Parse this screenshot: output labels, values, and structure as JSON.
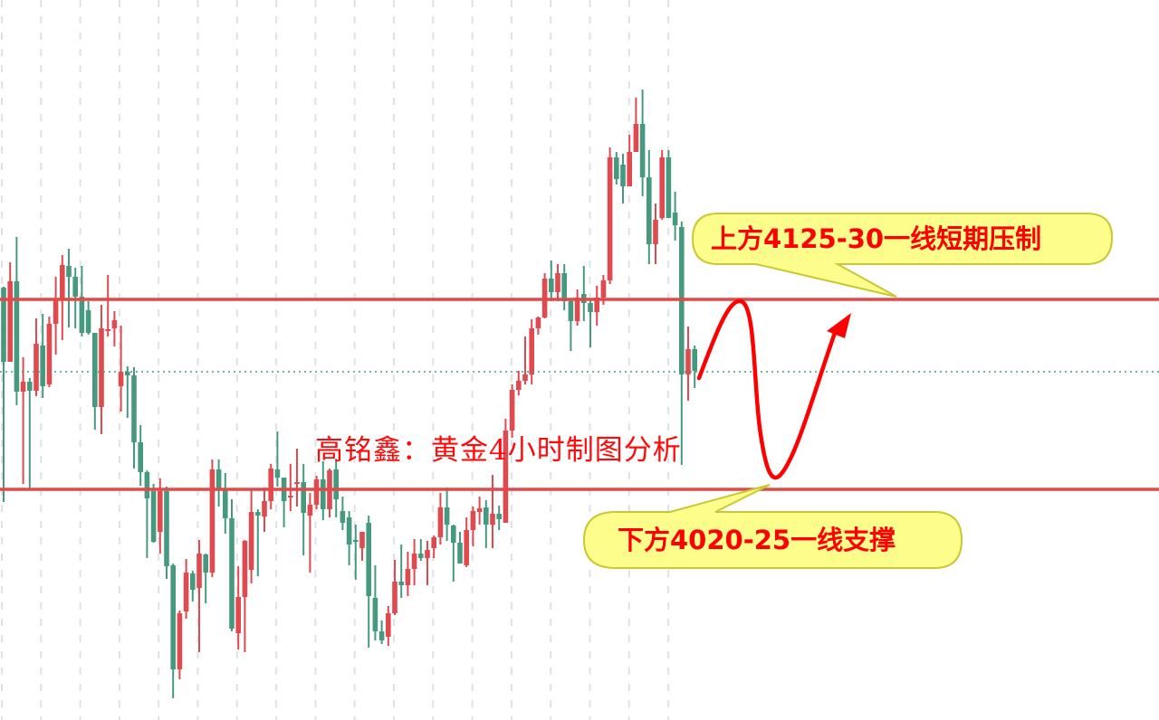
{
  "chart_data": {
    "type": "candlestick",
    "title": "高铭鑫：黄金4小时制图分析",
    "ylim": [
      3895,
      4293
    ],
    "grid": {
      "vertical": "dashed",
      "horizontal": false
    },
    "colors": {
      "up": "#e04a4f",
      "down": "#46997f",
      "level_line": "#e34848",
      "current_price_line": "#46997f",
      "callout_fill": "#fdfd8c",
      "callout_border": "#c8c832",
      "text": "#ff0000",
      "arrow": "#ff0000"
    },
    "candles_format": [
      "open",
      "high",
      "low",
      "close"
    ],
    "candles": [
      [
        4134,
        4134.5,
        4015.5,
        4093
      ],
      [
        4093,
        4148,
        4093,
        4137.5
      ],
      [
        4137.5,
        4162,
        4069,
        4076.5
      ],
      [
        4076.5,
        4095.5,
        4025.5,
        4082
      ],
      [
        4082,
        4084,
        4022.5,
        4077
      ],
      [
        4077,
        4117,
        4074,
        4103
      ],
      [
        4102,
        4119.5,
        4073,
        4079.5
      ],
      [
        4080.5,
        4118,
        4079,
        4114
      ],
      [
        4114,
        4140,
        4097,
        4127.5
      ],
      [
        4127.5,
        4152,
        4105,
        4146.5
      ],
      [
        4146,
        4155.5,
        4112,
        4140
      ],
      [
        4140,
        4145,
        4111.5,
        4129
      ],
      [
        4129,
        4146,
        4107,
        4109
      ],
      [
        4121.5,
        4126.5,
        4108,
        4109
      ],
      [
        4109,
        4109,
        4055.5,
        4068
      ],
      [
        4068,
        4124.5,
        4053,
        4111.5
      ],
      [
        4110.5,
        4141,
        4107,
        4111
      ],
      [
        4111.5,
        4121,
        4101.5,
        4116
      ],
      [
        4079.5,
        4113,
        4065.5,
        4087.5
      ],
      [
        4087.5,
        4090.5,
        4062,
        4085.5
      ],
      [
        4085.5,
        4090,
        4034,
        4048.5
      ],
      [
        4048.5,
        4058,
        4024.5,
        4032
      ],
      [
        4032,
        4033,
        3984.5,
        4017.5
      ],
      [
        4021.5,
        4025.5,
        3993,
        3993.5
      ],
      [
        3999,
        4028.5,
        3987,
        4021.5
      ],
      [
        4021.5,
        4024,
        3973,
        3980
      ],
      [
        3980.5,
        3981.5,
        3907,
        3923
      ],
      [
        3923,
        3955.5,
        3917.5,
        3954
      ],
      [
        3955,
        3984,
        3951,
        3976.5
      ],
      [
        3976,
        3977.5,
        3960.5,
        3967
      ],
      [
        3968,
        3994.5,
        3932.5,
        3987
      ],
      [
        3986.5,
        3987,
        3959.5,
        3976.5
      ],
      [
        3976.5,
        4039,
        3974,
        4033.5
      ],
      [
        4033.5,
        4039,
        4013,
        4023
      ],
      [
        4023,
        4031.5,
        3998,
        4006.5
      ],
      [
        4006.5,
        4017,
        3944,
        3945.5
      ],
      [
        3943,
        3980,
        3934,
        3963
      ],
      [
        3963,
        3994.5,
        3932.5,
        3994
      ],
      [
        3978,
        4022.5,
        3970.5,
        4010
      ],
      [
        4010,
        4011.5,
        3974.5,
        4008
      ],
      [
        4007.5,
        4023.5,
        3999,
        4016
      ],
      [
        4016,
        4036.5,
        4011.5,
        4034
      ],
      [
        4033.5,
        4054.5,
        4024,
        4029
      ],
      [
        4029,
        4029,
        4001.5,
        4016
      ],
      [
        4019,
        4036.5,
        4010.5,
        4019
      ],
      [
        4026.5,
        4045,
        4013,
        4026.5
      ],
      [
        4026.5,
        4036.5,
        3986,
        4009.5
      ],
      [
        4008,
        4020.5,
        3976.5,
        4014
      ],
      [
        4014,
        4030,
        4011.5,
        4028
      ],
      [
        4028,
        4038,
        4005.5,
        4011.5
      ],
      [
        4011.5,
        4034,
        4007,
        4033
      ],
      [
        4033.5,
        4039.5,
        4007,
        4017
      ],
      [
        4010.5,
        4018.5,
        4000,
        4004
      ],
      [
        4007,
        4010.5,
        3980.5,
        3992
      ],
      [
        3994.5,
        4003,
        3972.5,
        3993.5
      ],
      [
        3990,
        3995.5,
        3983,
        3999
      ],
      [
        4004,
        4008,
        3935,
        3963.5
      ],
      [
        3962.5,
        3980.5,
        3939,
        3944
      ],
      [
        3944,
        3950,
        3937,
        3939
      ],
      [
        3941,
        3958,
        3936,
        3954
      ],
      [
        3954,
        3983.5,
        3953,
        3971.5
      ],
      [
        3971.5,
        3992,
        3962.5,
        3969.5
      ],
      [
        3969.5,
        3988,
        3963.5,
        3978.5
      ],
      [
        3978.5,
        3995,
        3969.5,
        3987
      ],
      [
        3987,
        3995,
        3983,
        3984.5
      ],
      [
        3984.5,
        3994,
        3969.5,
        3989
      ],
      [
        3990,
        3997,
        3984.5,
        3996
      ],
      [
        3996,
        4020.5,
        3992,
        4012.5
      ],
      [
        4012.5,
        4023.5,
        3994,
        4003
      ],
      [
        4002.5,
        4003,
        3971.5,
        3993
      ],
      [
        3993,
        3999,
        3981.5,
        3981.5
      ],
      [
        3980.5,
        4007,
        3979.5,
        4000
      ],
      [
        4000,
        4013,
        3991,
        4010.5
      ],
      [
        4010,
        4018.5,
        4003,
        4012
      ],
      [
        4012.5,
        4016.5,
        3990,
        4003
      ],
      [
        4003,
        4030.5,
        3990,
        4009
      ],
      [
        4009,
        4013.5,
        4000,
        4006
      ],
      [
        4004,
        4061.5,
        4004,
        4055
      ],
      [
        4055,
        4080.5,
        4051,
        4077.5
      ],
      [
        4077.5,
        4088,
        4074.5,
        4082.5
      ],
      [
        4082.5,
        4107,
        4080.5,
        4086
      ],
      [
        4086,
        4116.5,
        4080.5,
        4111.5
      ],
      [
        4111.5,
        4118,
        4108,
        4117.5
      ],
      [
        4117.5,
        4142,
        4117,
        4139
      ],
      [
        4139,
        4149,
        4126.5,
        4131.5
      ],
      [
        4131.5,
        4147,
        4126.5,
        4142
      ],
      [
        4142,
        4147,
        4121.5,
        4126.5
      ],
      [
        4126.5,
        4127.5,
        4099,
        4115.5
      ],
      [
        4115.5,
        4133,
        4113,
        4128.5
      ],
      [
        4130.5,
        4146,
        4115.5,
        4125.5
      ],
      [
        4125.5,
        4127.5,
        4101,
        4120.5
      ],
      [
        4120.5,
        4135,
        4113,
        4128.5
      ],
      [
        4128.5,
        4141,
        4124.5,
        4138
      ],
      [
        4138,
        4211.5,
        4136,
        4206
      ],
      [
        4206,
        4209,
        4191,
        4194
      ],
      [
        4202,
        4208,
        4180.5,
        4190
      ],
      [
        4190,
        4218.5,
        4190,
        4209
      ],
      [
        4209,
        4239,
        4209,
        4224.5
      ],
      [
        4224.5,
        4243.5,
        4184.5,
        4195
      ],
      [
        4195,
        4210,
        4147,
        4158
      ],
      [
        4158,
        4180.5,
        4147,
        4171.5
      ],
      [
        4172.5,
        4210,
        4171.5,
        4206
      ],
      [
        4206,
        4210,
        4172.5,
        4172.5
      ],
      [
        4175.5,
        4187,
        4160,
        4168.5
      ],
      [
        4167.5,
        4170.5,
        4036,
        4086
      ],
      [
        4086,
        4112.5,
        4071.5,
        4100
      ],
      [
        4100,
        4102,
        4078.5,
        4088
      ]
    ],
    "horizontal_lines": [
      {
        "price": 4127.5,
        "style": "solid"
      },
      {
        "price": 4022.5,
        "style": "solid"
      }
    ],
    "current_price_line": {
      "price": 4087.5,
      "style": "dotted"
    },
    "annotations": {
      "resistance": "上方4125-30一线短期压制",
      "support": "下方4020-25一线支撑"
    },
    "projected_path": {
      "description_points_price": [
        4085,
        4127,
        4030,
        4114
      ]
    }
  }
}
